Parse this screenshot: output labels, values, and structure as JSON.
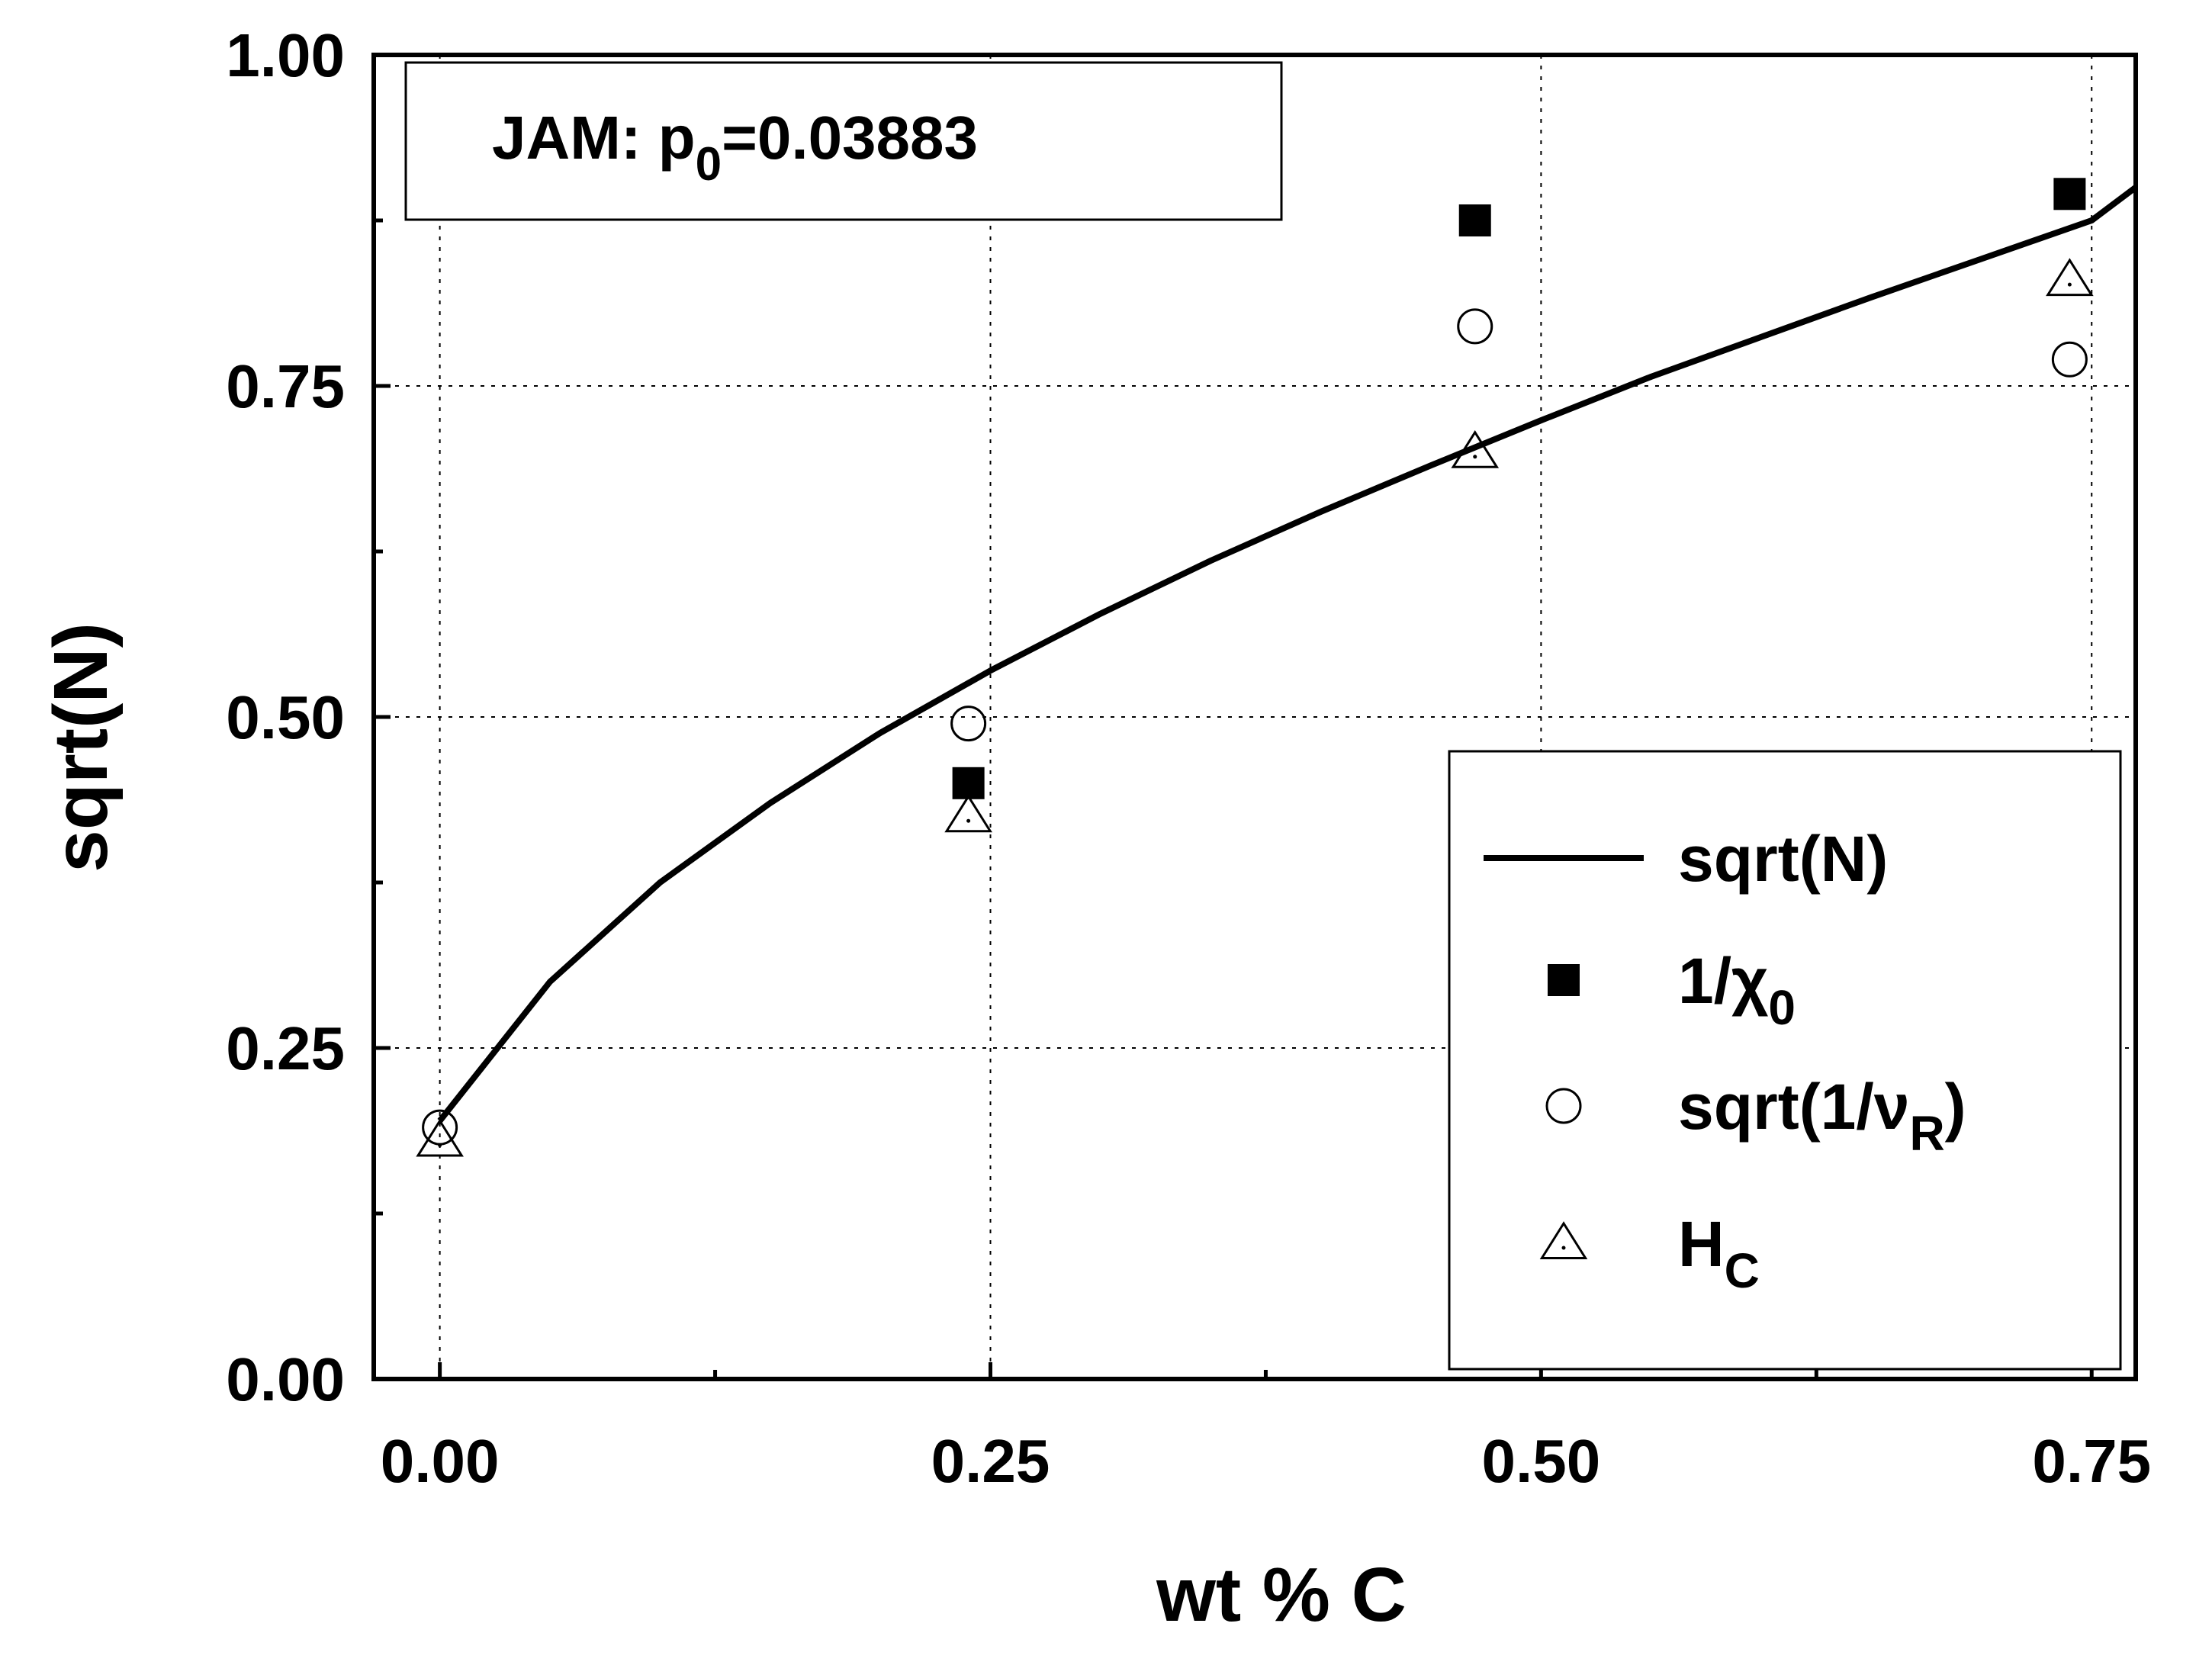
{
  "chart_data": {
    "type": "scatter",
    "xlabel": "wt % C",
    "ylabel": "sqrt(N)",
    "xlim": [
      -0.03,
      0.77
    ],
    "ylim": [
      0.0,
      1.0
    ],
    "x_ticks": [
      0.0,
      0.25,
      0.5,
      0.75
    ],
    "x_tick_labels": [
      "0.00",
      "0.25",
      "0.50",
      "0.75"
    ],
    "x_minor_ticks": [
      0.125,
      0.375,
      0.625
    ],
    "y_ticks": [
      0.0,
      0.25,
      0.5,
      0.75,
      1.0
    ],
    "y_tick_labels": [
      "0.00",
      "0.25",
      "0.50",
      "0.75",
      "1.00"
    ],
    "y_minor_ticks": [
      0.125,
      0.375,
      0.625,
      0.875
    ],
    "grid": true,
    "legend_position": "bottom-right",
    "annotation": {
      "prefix": "JAM: p",
      "subscript": "0",
      "suffix": "=0.03883"
    },
    "series": [
      {
        "name": "sqrt(N)",
        "legend_main": "sqrt(N)",
        "legend_sub": "",
        "legend_tail": "",
        "marker": "line",
        "x": [
          0.0,
          0.05,
          0.1,
          0.15,
          0.2,
          0.25,
          0.3,
          0.35,
          0.4,
          0.45,
          0.5,
          0.55,
          0.6,
          0.65,
          0.7,
          0.75,
          0.77
        ],
        "y": [
          0.195,
          0.3,
          0.375,
          0.435,
          0.488,
          0.535,
          0.578,
          0.618,
          0.655,
          0.69,
          0.724,
          0.757,
          0.787,
          0.817,
          0.846,
          0.875,
          0.9
        ]
      },
      {
        "name": "1/χ0",
        "legend_main": "1/χ",
        "legend_sub": "0",
        "legend_tail": "",
        "marker": "filled-square",
        "x": [
          0.24,
          0.47,
          0.74
        ],
        "y": [
          0.45,
          0.875,
          0.895
        ]
      },
      {
        "name": "sqrt(1/νR)",
        "legend_main": "sqrt(1/ν",
        "legend_sub": "R",
        "legend_tail": ")",
        "marker": "open-circle",
        "x": [
          0.0,
          0.24,
          0.47,
          0.74
        ],
        "y": [
          0.19,
          0.495,
          0.795,
          0.77
        ]
      },
      {
        "name": "HC",
        "legend_main": "H",
        "legend_sub": "C",
        "legend_tail": "",
        "marker": "open-triangle",
        "x": [
          0.0,
          0.24,
          0.47,
          0.74
        ],
        "y": [
          0.18,
          0.425,
          0.7,
          0.83
        ]
      }
    ]
  }
}
